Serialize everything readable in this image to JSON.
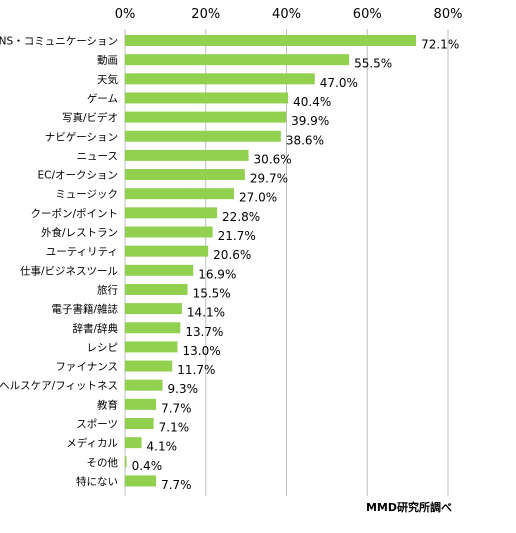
{
  "chart_data": {
    "type": "bar",
    "orientation": "horizontal",
    "categories": [
      "SNS・コミュニケーション",
      "動画",
      "天気",
      "ゲーム",
      "写真/ビデオ",
      "ナビゲーション",
      "ニュース",
      "EC/オークション",
      "ミュージック",
      "クーポン/ポイント",
      "外食/レストラン",
      "ユーティリティ",
      "仕事/ビジネスツール",
      "旅行",
      "電子書籍/雑誌",
      "辞書/辞典",
      "レシピ",
      "ファイナンス",
      "ヘルスケア/フィットネス",
      "教育",
      "スポーツ",
      "メディカル",
      "その他",
      "特にない"
    ],
    "values": [
      72.1,
      55.5,
      47.0,
      40.4,
      39.9,
      38.6,
      30.6,
      29.7,
      27.0,
      22.8,
      21.7,
      20.6,
      16.9,
      15.5,
      14.1,
      13.7,
      13.0,
      11.7,
      9.3,
      7.7,
      7.1,
      4.1,
      0.4,
      7.7
    ],
    "value_labels": [
      "72.1%",
      "55.5%",
      "47.0%",
      "40.4%",
      "39.9%",
      "38.6%",
      "30.6%",
      "29.7%",
      "27.0%",
      "22.8%",
      "21.7%",
      "20.6%",
      "16.9%",
      "15.5%",
      "14.1%",
      "13.7%",
      "13.0%",
      "11.7%",
      "9.3%",
      "7.7%",
      "7.1%",
      "4.1%",
      "0.4%",
      "7.7%"
    ],
    "xlim": [
      0,
      80
    ],
    "x_ticks": [
      0,
      20,
      40,
      60,
      80
    ],
    "x_tick_labels": [
      "0%",
      "20%",
      "40%",
      "60%",
      "80%"
    ],
    "axis_position": "top",
    "grid": true,
    "bar_color": "#92d050",
    "grid_color": "#bfbfbf"
  },
  "source_note": "MMD研究所調べ"
}
